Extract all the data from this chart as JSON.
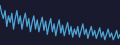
{
  "values": [
    28,
    22,
    18,
    24,
    12,
    20,
    15,
    22,
    10,
    18,
    24,
    14,
    20,
    10,
    17,
    22,
    12,
    18,
    8,
    15,
    20,
    10,
    17,
    8,
    14,
    19,
    9,
    16,
    6,
    13,
    18,
    8,
    14,
    5,
    12,
    17,
    7,
    13,
    5,
    10,
    15,
    6,
    12,
    4,
    10,
    6,
    12,
    4,
    9,
    14,
    6,
    10,
    3,
    8,
    12,
    5,
    9,
    3,
    7,
    11,
    4,
    8,
    2,
    6,
    10,
    4,
    7,
    2,
    5,
    9,
    3,
    6
  ],
  "line_color": "#4da6d8",
  "background_color": "#1a1a2e",
  "ylim": [
    -2,
    32
  ],
  "linewidth": 0.9
}
